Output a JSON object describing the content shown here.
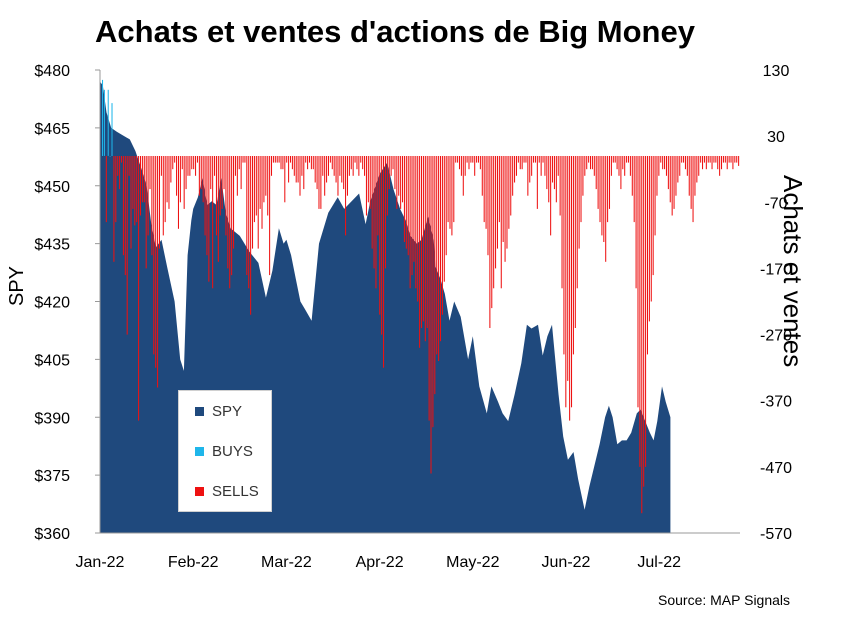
{
  "title": "Achats et ventes d'actions de Big Money",
  "source": "Source: MAP Signals",
  "chart_data": {
    "type": "area+bar",
    "title": "Achats et ventes d'actions de Big Money",
    "y_left": {
      "label": "SPY",
      "ylim": [
        360,
        480
      ],
      "ticks": [
        "$480",
        "$465",
        "$450",
        "$435",
        "$420",
        "$405",
        "$390",
        "$375",
        "$360"
      ],
      "tick_values": [
        480,
        465,
        450,
        435,
        420,
        405,
        390,
        375,
        360
      ]
    },
    "y_right": {
      "label": "Achats et ventes",
      "ylim": [
        -570,
        130
      ],
      "ticks": [
        "130",
        "30",
        "-70",
        "-170",
        "-270",
        "-370",
        "-470",
        "-570"
      ],
      "tick_values": [
        130,
        30,
        -70,
        -170,
        -270,
        -370,
        -470,
        -570
      ]
    },
    "x_ticks": [
      "Jan-22",
      "Feb-22",
      "Mar-22",
      "Apr-22",
      "May-22",
      "Jun-22",
      "Jul-22"
    ],
    "legend": [
      {
        "name": "SPY",
        "color": "#1f497d"
      },
      {
        "name": "BUYS",
        "color": "#1fb6ea"
      },
      {
        "name": "SELLS",
        "color": "#ee1111"
      }
    ],
    "legend_position": "bottom-left",
    "spy_series": [
      [
        0,
        477
      ],
      [
        0.03,
        476
      ],
      [
        0.07,
        469
      ],
      [
        0.12,
        465
      ],
      [
        0.18,
        464
      ],
      [
        0.25,
        463
      ],
      [
        0.32,
        462
      ],
      [
        0.38,
        459
      ],
      [
        0.45,
        454
      ],
      [
        0.5,
        450
      ],
      [
        0.55,
        440
      ],
      [
        0.6,
        434
      ],
      [
        0.66,
        436
      ],
      [
        0.72,
        429
      ],
      [
        0.8,
        420
      ],
      [
        0.86,
        405
      ],
      [
        0.9,
        402
      ],
      [
        0.94,
        432
      ],
      [
        0.98,
        441
      ],
      [
        1.0,
        444
      ],
      [
        1.05,
        447
      ],
      [
        1.1,
        452
      ],
      [
        1.15,
        445
      ],
      [
        1.2,
        446
      ],
      [
        1.25,
        445
      ],
      [
        1.3,
        452
      ],
      [
        1.35,
        443
      ],
      [
        1.4,
        439
      ],
      [
        1.5,
        437
      ],
      [
        1.6,
        433
      ],
      [
        1.7,
        430
      ],
      [
        1.78,
        421
      ],
      [
        1.85,
        428
      ],
      [
        1.92,
        439
      ],
      [
        1.97,
        435
      ],
      [
        2.0,
        436
      ],
      [
        2.05,
        432
      ],
      [
        2.1,
        426
      ],
      [
        2.15,
        420
      ],
      [
        2.2,
        418
      ],
      [
        2.27,
        415
      ],
      [
        2.35,
        435
      ],
      [
        2.45,
        443
      ],
      [
        2.55,
        447
      ],
      [
        2.62,
        444
      ],
      [
        2.7,
        446
      ],
      [
        2.78,
        448
      ],
      [
        2.85,
        440
      ],
      [
        2.9,
        446
      ],
      [
        3.0,
        453
      ],
      [
        3.08,
        456
      ],
      [
        3.15,
        449
      ],
      [
        3.22,
        444
      ],
      [
        3.28,
        441
      ],
      [
        3.33,
        437
      ],
      [
        3.4,
        435
      ],
      [
        3.45,
        436
      ],
      [
        3.52,
        442
      ],
      [
        3.58,
        436
      ],
      [
        3.6,
        429
      ],
      [
        3.65,
        426
      ],
      [
        3.7,
        422
      ],
      [
        3.75,
        415
      ],
      [
        3.8,
        420
      ],
      [
        3.87,
        416
      ],
      [
        3.95,
        405
      ],
      [
        4.0,
        411
      ],
      [
        4.07,
        398
      ],
      [
        4.15,
        391
      ],
      [
        4.2,
        398
      ],
      [
        4.27,
        394
      ],
      [
        4.32,
        391
      ],
      [
        4.38,
        389
      ],
      [
        4.45,
        396
      ],
      [
        4.52,
        404
      ],
      [
        4.58,
        414
      ],
      [
        4.63,
        413
      ],
      [
        4.7,
        414
      ],
      [
        4.75,
        406
      ],
      [
        4.8,
        411
      ],
      [
        4.85,
        414
      ],
      [
        4.92,
        396
      ],
      [
        4.97,
        385
      ],
      [
        5.02,
        379
      ],
      [
        5.08,
        381
      ],
      [
        5.13,
        374
      ],
      [
        5.2,
        366
      ],
      [
        5.25,
        372
      ],
      [
        5.3,
        377
      ],
      [
        5.36,
        383
      ],
      [
        5.42,
        390
      ],
      [
        5.46,
        393
      ],
      [
        5.5,
        390
      ],
      [
        5.55,
        383
      ],
      [
        5.6,
        384
      ],
      [
        5.65,
        384
      ],
      [
        5.7,
        386
      ],
      [
        5.76,
        391
      ],
      [
        5.8,
        392
      ],
      [
        5.85,
        389
      ],
      [
        5.9,
        386
      ],
      [
        5.94,
        384
      ],
      [
        5.98,
        389
      ],
      [
        6.03,
        398
      ],
      [
        6.07,
        394
      ],
      [
        6.12,
        390
      ]
    ],
    "bar_values": [
      115,
      100,
      -100,
      100,
      0,
      80,
      -160,
      -100,
      -30,
      -50,
      -10,
      -150,
      -180,
      -270,
      -30,
      -140,
      -80,
      -105,
      -100,
      -400,
      -90,
      -70,
      -70,
      -170,
      -120,
      -50,
      -150,
      -300,
      -320,
      -350,
      -140,
      -30,
      -120,
      -100,
      -70,
      -80,
      -40,
      -20,
      -10,
      -60,
      -110,
      -70,
      -20,
      -80,
      -50,
      -30,
      -30,
      -20,
      -20,
      -30,
      -10,
      -60,
      -50,
      -70,
      -120,
      -150,
      -190,
      -50,
      -200,
      -30,
      -120,
      -160,
      -90,
      -80,
      -50,
      -120,
      -170,
      -200,
      -180,
      -140,
      -30,
      -60,
      -20,
      -50,
      -10,
      -10,
      -180,
      -200,
      -240,
      -140,
      -100,
      -90,
      -140,
      -80,
      -110,
      -70,
      -60,
      -90,
      -180,
      -30,
      -10,
      -10,
      -10,
      -10,
      -20,
      -20,
      -70,
      -10,
      -40,
      -10,
      -20,
      -30,
      -40,
      -40,
      -60,
      -30,
      -50,
      -10,
      -20,
      -10,
      -20,
      -20,
      -40,
      -50,
      -80,
      -80,
      -30,
      -60,
      -40,
      -30,
      -10,
      -20,
      -30,
      -40,
      -60,
      -30,
      -40,
      -50,
      -120,
      -60,
      -30,
      -20,
      -30,
      -10,
      -20,
      -30,
      -10,
      -20,
      -30,
      -90,
      -70,
      -80,
      -140,
      -170,
      -200,
      -120,
      -240,
      -270,
      -320,
      -170,
      -90,
      -50,
      -30,
      -20,
      -50,
      -80,
      -60,
      -80,
      -70,
      -130,
      -140,
      -150,
      -200,
      -180,
      -160,
      -200,
      -220,
      -290,
      -260,
      -250,
      -280,
      -260,
      -400,
      -480,
      -410,
      -360,
      -300,
      -310,
      -280,
      -240,
      -190,
      -150,
      -100,
      -110,
      -120,
      -100,
      -10,
      -10,
      -20,
      -30,
      -60,
      -30,
      -10,
      -20,
      -10,
      -10,
      -30,
      -10,
      -10,
      -20,
      -60,
      -100,
      -110,
      -150,
      -260,
      -230,
      -200,
      -170,
      -140,
      -100,
      -200,
      -130,
      -160,
      -140,
      -110,
      -90,
      -60,
      -40,
      -30,
      -10,
      -20,
      -20,
      -10,
      -10,
      -60,
      -40,
      -30,
      -10,
      -10,
      -80,
      -10,
      -30,
      -10,
      -30,
      -50,
      -70,
      -120,
      -40,
      -50,
      -70,
      -30,
      -90,
      -200,
      -300,
      -380,
      -340,
      -400,
      -380,
      -300,
      -260,
      -200,
      -140,
      -100,
      -60,
      -30,
      -20,
      -10,
      -20,
      -20,
      -30,
      -50,
      -80,
      -100,
      -120,
      -130,
      -160,
      -100,
      -80,
      -30,
      -10,
      -10,
      -20,
      -30,
      -50,
      -20,
      -30,
      -10,
      -10,
      -30,
      -60,
      -100,
      -200,
      -380,
      -470,
      -540,
      -500,
      -470,
      -300,
      -250,
      -220,
      -180,
      -120,
      -60,
      -30,
      -10,
      -20,
      -20,
      -30,
      -50,
      -70,
      -90,
      -80,
      -60,
      -40,
      -30,
      -10,
      -10,
      -20,
      -30,
      -60,
      -80,
      -100,
      -60,
      -40,
      -30,
      -10,
      -20,
      -10,
      -20,
      -10,
      -10,
      -20,
      -10,
      -10,
      -20,
      -30,
      -20,
      -10,
      -10,
      -20,
      -10,
      -10,
      -20,
      -10,
      -10,
      -15
    ]
  }
}
